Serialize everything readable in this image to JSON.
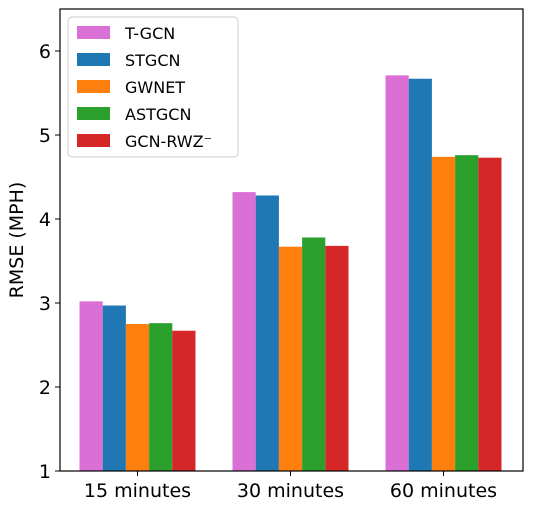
{
  "chart_data": {
    "type": "bar",
    "title": "",
    "xlabel": "",
    "ylabel": "RMSE (MPH)",
    "ylim": [
      1,
      6.5
    ],
    "yticks": [
      "1",
      "2",
      "3",
      "4",
      "5",
      "6"
    ],
    "grid": false,
    "legend_position": "top-left",
    "categories": [
      "15 minutes",
      "30 minutes",
      "60 minutes"
    ],
    "series": [
      {
        "name": "T-GCN",
        "color": "#da70d6",
        "values": [
          3.02,
          4.32,
          5.71
        ]
      },
      {
        "name": "STGCN",
        "color": "#1f77b4",
        "values": [
          2.97,
          4.28,
          5.67
        ]
      },
      {
        "name": "GWNET",
        "color": "#ff7f0e",
        "values": [
          2.75,
          3.67,
          4.74
        ]
      },
      {
        "name": "ASTGCN",
        "color": "#2ca02c",
        "values": [
          2.76,
          3.78,
          4.76
        ]
      },
      {
        "name": "GCN-RWZ⁻",
        "color": "#d62728",
        "values": [
          2.67,
          3.68,
          4.73
        ]
      }
    ]
  }
}
